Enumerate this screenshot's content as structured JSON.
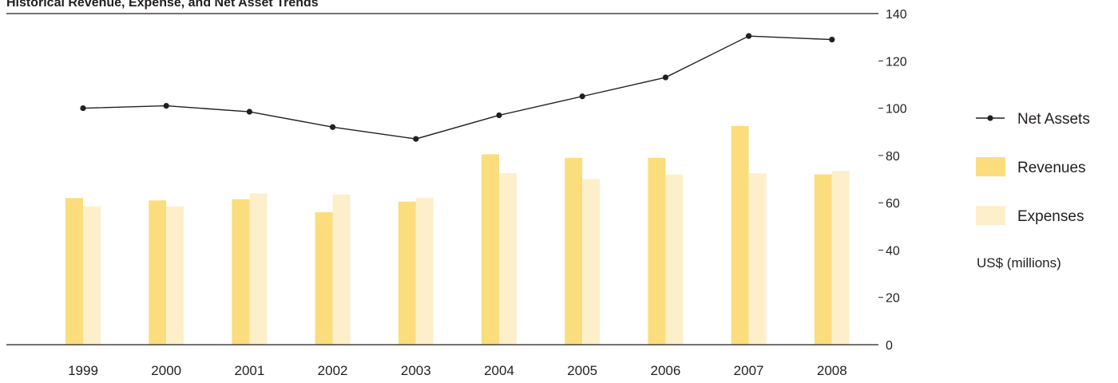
{
  "chart_data": {
    "type": "bar",
    "title": "Historical Revenue, Expense, and Net Asset Trends",
    "categories": [
      "1999",
      "2000",
      "2001",
      "2002",
      "2003",
      "2004",
      "2005",
      "2006",
      "2007",
      "2008"
    ],
    "series": [
      {
        "name": "Revenues",
        "type": "bar",
        "color": "#fbdd7e",
        "values": [
          62,
          61,
          61.5,
          56,
          60.5,
          80.5,
          79,
          79,
          92.5,
          72
        ]
      },
      {
        "name": "Expenses",
        "type": "bar",
        "color": "#fdefca",
        "values": [
          58.5,
          58.5,
          64,
          63.5,
          62,
          72.5,
          70,
          72,
          72.5,
          73.5
        ]
      },
      {
        "name": "Net Assets",
        "type": "line",
        "color": "#231f20",
        "values": [
          100,
          101,
          98.5,
          92,
          87,
          97,
          105,
          113,
          130.5,
          129
        ]
      }
    ],
    "ylim": [
      0,
      140
    ],
    "yticks": [
      0,
      20,
      40,
      60,
      80,
      100,
      120,
      140
    ],
    "ytick_labels": [
      "0",
      "20",
      "40",
      "60",
      "80",
      "100",
      "120",
      "140"
    ],
    "unit_label": "US$ (millions)",
    "xlabel": "",
    "ylabel": "",
    "grid": false,
    "legend_position": "right"
  }
}
